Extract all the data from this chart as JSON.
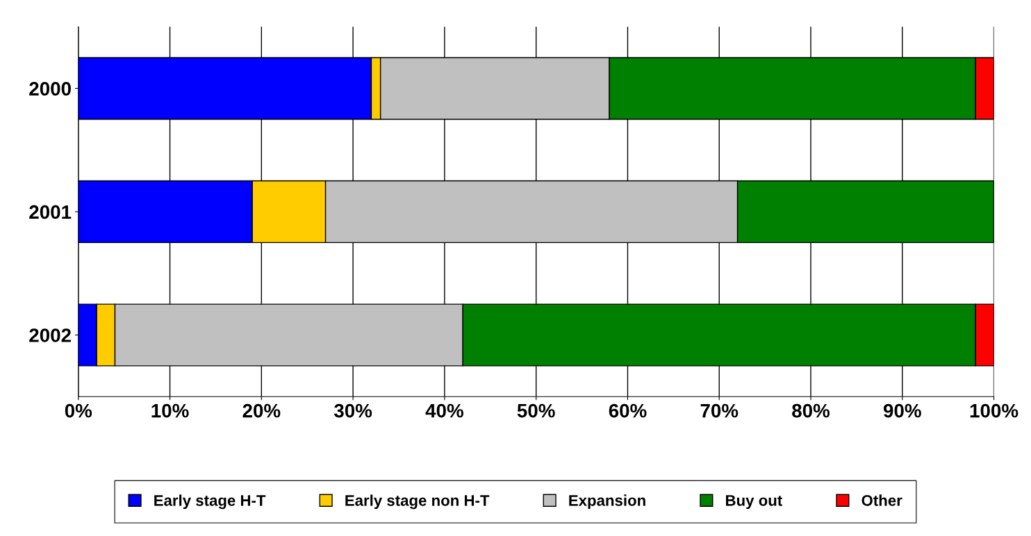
{
  "chart_data": {
    "type": "bar",
    "orientation": "horizontal",
    "stacked": true,
    "categories": [
      "2000",
      "2001",
      "2002"
    ],
    "series": [
      {
        "name": "Early stage H-T",
        "color": "#0000ff",
        "values": [
          32,
          19,
          2
        ]
      },
      {
        "name": "Early stage non H-T",
        "color": "#ffcc00",
        "values": [
          1,
          8,
          2
        ]
      },
      {
        "name": "Expansion",
        "color": "#c0c0c0",
        "values": [
          25,
          45,
          38
        ]
      },
      {
        "name": "Buy out",
        "color": "#008000",
        "values": [
          40,
          28,
          56
        ]
      },
      {
        "name": "Other",
        "color": "#ff0000",
        "values": [
          2,
          0,
          2
        ]
      }
    ],
    "xlim": [
      0,
      100
    ],
    "xticks": [
      {
        "value": 0,
        "label": "0%"
      },
      {
        "value": 10,
        "label": "10%"
      },
      {
        "value": 20,
        "label": "20%"
      },
      {
        "value": 30,
        "label": "30%"
      },
      {
        "value": 40,
        "label": "40%"
      },
      {
        "value": 50,
        "label": "50%"
      },
      {
        "value": 60,
        "label": "60%"
      },
      {
        "value": 70,
        "label": "70%"
      },
      {
        "value": 80,
        "label": "80%"
      },
      {
        "value": 90,
        "label": "90%"
      },
      {
        "value": 100,
        "label": "100%"
      }
    ],
    "grid": "x",
    "legend": "bottom"
  }
}
